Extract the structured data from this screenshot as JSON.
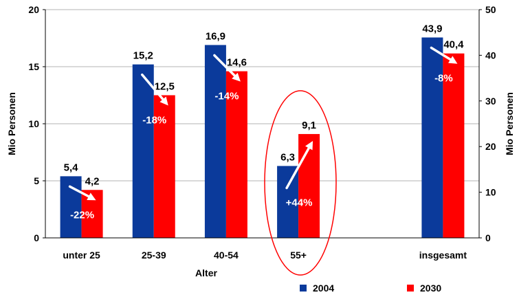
{
  "chart_data": {
    "type": "bar",
    "categories": [
      "unter 25",
      "25-39",
      "40-54",
      "55+",
      "",
      "insgesamt"
    ],
    "series": [
      {
        "name": "2004",
        "color": "#0b3a9b",
        "values": [
          5.4,
          15.2,
          16.9,
          6.3,
          null,
          43.9
        ],
        "labels": [
          "5,4",
          "15,2",
          "16,9",
          "6,3",
          "",
          "43,9"
        ]
      },
      {
        "name": "2030",
        "color": "#ff0000",
        "values": [
          4.2,
          12.5,
          14.6,
          9.1,
          null,
          40.4
        ],
        "labels": [
          "4,2",
          "12,5",
          "14,6",
          "9,1",
          "",
          "40,4"
        ]
      }
    ],
    "changes": [
      "-22%",
      "-18%",
      "-14%",
      "+44%",
      "",
      "-8%"
    ],
    "xlabel": "Alter",
    "ylabel_left": "Mio Personen",
    "ylabel_right": "Mio Personen",
    "ylim_left": [
      0,
      20
    ],
    "yticks_left": [
      "0",
      "5",
      "10",
      "15",
      "20"
    ],
    "ylim_right": [
      0,
      50
    ],
    "yticks_right": [
      "0",
      "10",
      "20",
      "30",
      "40",
      "50"
    ],
    "secondary_axis_category": "insgesamt",
    "highlight_category": "55+",
    "highlight_color": "#ff0000",
    "grid": "horizontal",
    "legend_position": "bottom-right"
  }
}
